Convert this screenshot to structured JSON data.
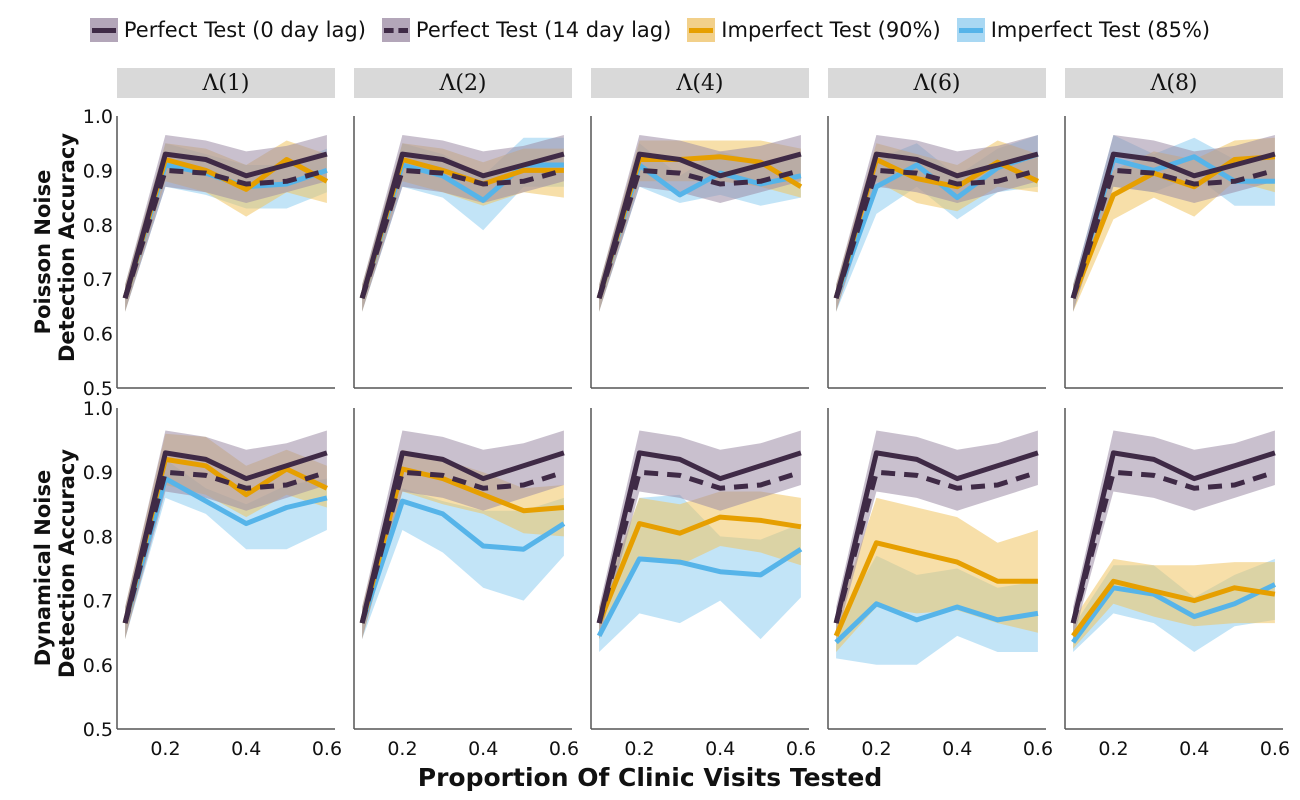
{
  "legend": {
    "items": [
      {
        "label": "Perfect Test (0 day lag)",
        "color": "#3f2a46",
        "style": "solid",
        "band": "#b3a6b9"
      },
      {
        "label": "Perfect Test (14 day lag)",
        "color": "#3f2a46",
        "style": "dashed",
        "band": "#b3a6b9"
      },
      {
        "label": "Imperfect Test (90%)",
        "color": "#e69f00",
        "style": "solid",
        "band": "#f2d08a"
      },
      {
        "label": "Imperfect Test (85%)",
        "color": "#56b4e9",
        "style": "solid",
        "band": "#a9d8f3"
      }
    ]
  },
  "facets": [
    "Λ(1)",
    "Λ(2)",
    "Λ(4)",
    "Λ(6)",
    "Λ(8)"
  ],
  "row_labels": [
    "Poisson Noise\nDetection Accuracy",
    "Dynamical Noise\nDetection Accuracy"
  ],
  "x_title": "Proportion Of Clinic Visits Tested",
  "chart_data": {
    "type": "line",
    "x": [
      0.1,
      0.2,
      0.3,
      0.4,
      0.5,
      0.6
    ],
    "xticks": [
      0.2,
      0.4,
      0.6
    ],
    "xlim": [
      0.08,
      0.62
    ],
    "ylim": [
      0.5,
      1.0
    ],
    "yticks": [
      0.5,
      0.6,
      0.7,
      0.8,
      0.9,
      1.0
    ],
    "perfect_0": {
      "mean": [
        0.665,
        0.93,
        0.92,
        0.89,
        0.91,
        0.93
      ],
      "lo": [
        0.64,
        0.87,
        0.86,
        0.84,
        0.86,
        0.88
      ],
      "hi": [
        0.69,
        0.965,
        0.955,
        0.935,
        0.945,
        0.965
      ]
    },
    "perfect_14": {
      "mean": [
        0.665,
        0.9,
        0.895,
        0.875,
        0.88,
        0.9
      ],
      "lo": [
        0.64,
        0.86,
        0.85,
        0.83,
        0.84,
        0.85
      ],
      "hi": [
        0.69,
        0.94,
        0.94,
        0.92,
        0.92,
        0.94
      ]
    },
    "panels": [
      {
        "row": 0,
        "col": 0,
        "imp90": {
          "mean": [
            0.665,
            0.92,
            0.9,
            0.865,
            0.92,
            0.88
          ],
          "lo": [
            0.64,
            0.88,
            0.86,
            0.815,
            0.86,
            0.84
          ],
          "hi": [
            0.69,
            0.95,
            0.94,
            0.91,
            0.955,
            0.93
          ]
        },
        "imp85": {
          "mean": [
            0.665,
            0.91,
            0.895,
            0.87,
            0.875,
            0.9
          ],
          "lo": [
            0.64,
            0.87,
            0.855,
            0.83,
            0.83,
            0.86
          ],
          "hi": [
            0.69,
            0.95,
            0.93,
            0.91,
            0.91,
            0.94
          ]
        }
      },
      {
        "row": 0,
        "col": 1,
        "imp90": {
          "mean": [
            0.665,
            0.92,
            0.9,
            0.875,
            0.9,
            0.9
          ],
          "lo": [
            0.64,
            0.88,
            0.86,
            0.835,
            0.86,
            0.85
          ],
          "hi": [
            0.69,
            0.95,
            0.94,
            0.915,
            0.94,
            0.94
          ]
        },
        "imp85": {
          "mean": [
            0.665,
            0.91,
            0.89,
            0.845,
            0.91,
            0.91
          ],
          "lo": [
            0.64,
            0.87,
            0.85,
            0.79,
            0.87,
            0.87
          ],
          "hi": [
            0.69,
            0.95,
            0.93,
            0.89,
            0.96,
            0.96
          ]
        }
      },
      {
        "row": 0,
        "col": 2,
        "imp90": {
          "mean": [
            0.665,
            0.92,
            0.92,
            0.925,
            0.915,
            0.87
          ],
          "lo": [
            0.64,
            0.88,
            0.88,
            0.88,
            0.87,
            0.85
          ],
          "hi": [
            0.69,
            0.955,
            0.955,
            0.955,
            0.955,
            0.94
          ]
        },
        "imp85": {
          "mean": [
            0.665,
            0.91,
            0.855,
            0.895,
            0.875,
            0.89
          ],
          "lo": [
            0.64,
            0.87,
            0.84,
            0.855,
            0.835,
            0.85
          ],
          "hi": [
            0.69,
            0.95,
            0.89,
            0.935,
            0.915,
            0.93
          ]
        }
      },
      {
        "row": 0,
        "col": 3,
        "imp90": {
          "mean": [
            0.665,
            0.92,
            0.885,
            0.87,
            0.915,
            0.88
          ],
          "lo": [
            0.64,
            0.88,
            0.84,
            0.825,
            0.87,
            0.86
          ],
          "hi": [
            0.69,
            0.95,
            0.93,
            0.91,
            0.955,
            0.93
          ]
        },
        "imp85": {
          "mean": [
            0.665,
            0.87,
            0.91,
            0.85,
            0.905,
            0.93
          ],
          "lo": [
            0.64,
            0.82,
            0.87,
            0.81,
            0.86,
            0.87
          ],
          "hi": [
            0.69,
            0.92,
            0.95,
            0.89,
            0.94,
            0.965
          ]
        }
      },
      {
        "row": 0,
        "col": 4,
        "imp90": {
          "mean": [
            0.665,
            0.855,
            0.895,
            0.87,
            0.92,
            0.925
          ],
          "lo": [
            0.64,
            0.81,
            0.85,
            0.815,
            0.88,
            0.86
          ],
          "hi": [
            0.69,
            0.9,
            0.935,
            0.92,
            0.955,
            0.96
          ]
        },
        "imp85": {
          "mean": [
            0.665,
            0.92,
            0.9,
            0.925,
            0.88,
            0.88
          ],
          "lo": [
            0.64,
            0.87,
            0.86,
            0.89,
            0.835,
            0.835
          ],
          "hi": [
            0.69,
            0.965,
            0.93,
            0.96,
            0.92,
            0.92
          ]
        }
      },
      {
        "row": 1,
        "col": 0,
        "imp90": {
          "mean": [
            0.665,
            0.92,
            0.91,
            0.865,
            0.905,
            0.875
          ],
          "lo": [
            0.64,
            0.88,
            0.865,
            0.83,
            0.865,
            0.845
          ],
          "hi": [
            0.69,
            0.96,
            0.955,
            0.91,
            0.935,
            0.91
          ]
        },
        "imp85": {
          "mean": [
            0.665,
            0.89,
            0.855,
            0.82,
            0.845,
            0.86
          ],
          "lo": [
            0.64,
            0.86,
            0.835,
            0.78,
            0.78,
            0.81
          ],
          "hi": [
            0.69,
            0.92,
            0.875,
            0.85,
            0.88,
            0.89
          ]
        }
      },
      {
        "row": 1,
        "col": 1,
        "imp90": {
          "mean": [
            0.665,
            0.905,
            0.89,
            0.865,
            0.84,
            0.845
          ],
          "lo": [
            0.64,
            0.87,
            0.85,
            0.835,
            0.805,
            0.8
          ],
          "hi": [
            0.69,
            0.935,
            0.92,
            0.9,
            0.875,
            0.88
          ]
        },
        "imp85": {
          "mean": [
            0.665,
            0.855,
            0.835,
            0.785,
            0.78,
            0.82
          ],
          "lo": [
            0.64,
            0.81,
            0.775,
            0.72,
            0.7,
            0.77
          ],
          "hi": [
            0.69,
            0.875,
            0.855,
            0.84,
            0.84,
            0.86
          ]
        }
      },
      {
        "row": 1,
        "col": 2,
        "imp90": {
          "mean": [
            0.665,
            0.82,
            0.805,
            0.83,
            0.825,
            0.815
          ],
          "lo": [
            0.64,
            0.77,
            0.755,
            0.785,
            0.775,
            0.755
          ],
          "hi": [
            0.69,
            0.86,
            0.85,
            0.87,
            0.87,
            0.86
          ]
        },
        "imp85": {
          "mean": [
            0.645,
            0.765,
            0.76,
            0.745,
            0.74,
            0.78
          ],
          "lo": [
            0.62,
            0.68,
            0.665,
            0.7,
            0.64,
            0.705
          ],
          "hi": [
            0.68,
            0.86,
            0.865,
            0.8,
            0.795,
            0.82
          ]
        }
      },
      {
        "row": 1,
        "col": 3,
        "imp90": {
          "mean": [
            0.645,
            0.79,
            0.775,
            0.76,
            0.73,
            0.73
          ],
          "lo": [
            0.62,
            0.69,
            0.68,
            0.685,
            0.665,
            0.65
          ],
          "hi": [
            0.67,
            0.86,
            0.845,
            0.83,
            0.79,
            0.81
          ]
        },
        "imp85": {
          "mean": [
            0.635,
            0.695,
            0.67,
            0.69,
            0.67,
            0.68
          ],
          "lo": [
            0.61,
            0.6,
            0.6,
            0.645,
            0.62,
            0.62
          ],
          "hi": [
            0.66,
            0.77,
            0.74,
            0.75,
            0.72,
            0.73
          ]
        }
      },
      {
        "row": 1,
        "col": 4,
        "imp90": {
          "mean": [
            0.645,
            0.73,
            0.715,
            0.7,
            0.72,
            0.71
          ],
          "lo": [
            0.625,
            0.695,
            0.675,
            0.66,
            0.665,
            0.665
          ],
          "hi": [
            0.67,
            0.765,
            0.755,
            0.755,
            0.76,
            0.76
          ]
        },
        "imp85": {
          "mean": [
            0.635,
            0.72,
            0.71,
            0.675,
            0.695,
            0.725
          ],
          "lo": [
            0.62,
            0.68,
            0.665,
            0.62,
            0.66,
            0.67
          ],
          "hi": [
            0.66,
            0.755,
            0.755,
            0.705,
            0.74,
            0.765
          ]
        }
      }
    ]
  }
}
